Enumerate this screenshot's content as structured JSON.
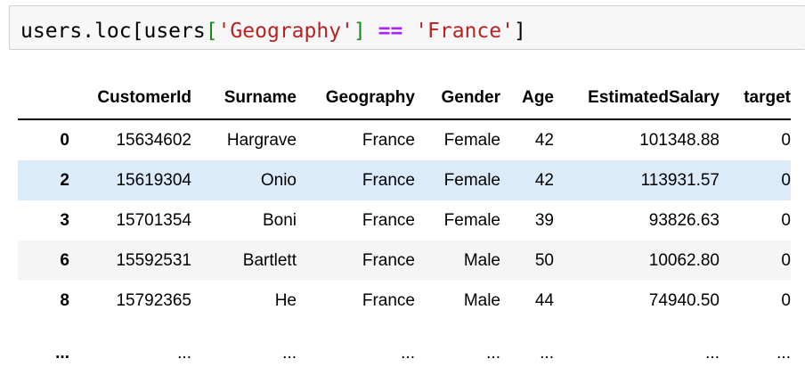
{
  "code_cell": {
    "tokens": {
      "t1": "users.loc[users",
      "t2": "[",
      "t3": "'Geography'",
      "t4": "]",
      "t5": " ",
      "t6": "==",
      "t7": " ",
      "t8": "'France'",
      "t9": "]"
    }
  },
  "table": {
    "columns": [
      "",
      "CustomerId",
      "Surname",
      "Geography",
      "Gender",
      "Age",
      "EstimatedSalary",
      "target"
    ],
    "rows": [
      {
        "index": "0",
        "cells": [
          "15634602",
          "Hargrave",
          "France",
          "Female",
          "42",
          "101348.88",
          "0"
        ]
      },
      {
        "index": "2",
        "cells": [
          "15619304",
          "Onio",
          "France",
          "Female",
          "42",
          "113931.57",
          "0"
        ]
      },
      {
        "index": "3",
        "cells": [
          "15701354",
          "Boni",
          "France",
          "Female",
          "39",
          "93826.63",
          "0"
        ]
      },
      {
        "index": "6",
        "cells": [
          "15592531",
          "Bartlett",
          "France",
          "Male",
          "50",
          "10062.80",
          "0"
        ]
      },
      {
        "index": "8",
        "cells": [
          "15792365",
          "He",
          "France",
          "Male",
          "44",
          "74940.50",
          "0"
        ]
      }
    ],
    "ellipsis": [
      "...",
      "...",
      "...",
      "...",
      "...",
      "...",
      "...",
      "..."
    ]
  },
  "colors": {
    "highlight_row": "#dcebfa",
    "alt_row": "#f5f5f5",
    "string_token": "#ba2121",
    "operator_token": "#aa22ff",
    "bracket_token": "#1a8a1a"
  }
}
